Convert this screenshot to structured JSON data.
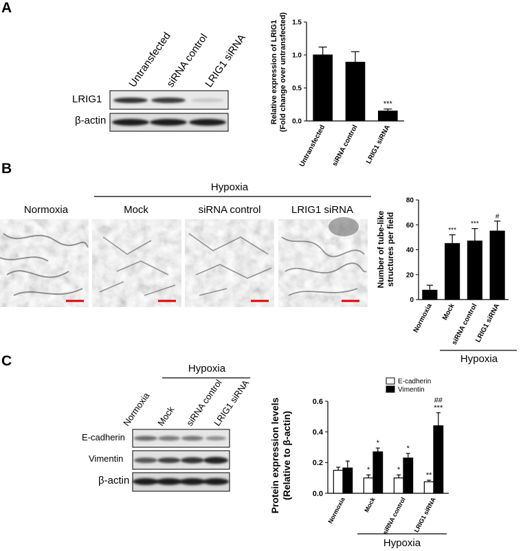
{
  "panel_a": {
    "letter": "A",
    "lane_labels": [
      "Untransfected",
      "siRNA control",
      "LRIG1 siRNA"
    ],
    "blot_rows": [
      "LRIG1",
      "β-actin"
    ],
    "chart_data": {
      "type": "bar",
      "categories": [
        "Untransfected",
        "siRNA control",
        "LRIG1 siRNA"
      ],
      "values": [
        1.0,
        0.89,
        0.15
      ],
      "errors": [
        0.12,
        0.16,
        0.03
      ],
      "annotations": [
        "",
        "",
        "***"
      ],
      "ylabel_line1": "Relative expression of LRIG1",
      "ylabel_line2": "(Fold change over untransfected)",
      "ylim": [
        0,
        1.5
      ],
      "yticks": [
        "0.0",
        "0.5",
        "1.0",
        "1.5"
      ],
      "ytick_values": [
        0,
        0.5,
        1.0,
        1.5
      ],
      "bar_color": "#000000"
    }
  },
  "panel_b": {
    "letter": "B",
    "group_label": "Hypoxia",
    "image_labels": [
      "Normoxia",
      "Mock",
      "siRNA control",
      "LRIG1 siRNA"
    ],
    "chart_data": {
      "type": "bar",
      "categories": [
        "Normoxia",
        "Mock",
        "siRNA control",
        "LRIG1 siRNA"
      ],
      "values": [
        7.5,
        45,
        47,
        55
      ],
      "errors": [
        4,
        7,
        10,
        8
      ],
      "annotations": [
        "",
        "***",
        "***",
        "#"
      ],
      "ylabel_line1": "Number of tube-like",
      "ylabel_line2": "structures per field",
      "ylim": [
        0,
        80
      ],
      "yticks": [
        "0",
        "20",
        "40",
        "60",
        "80"
      ],
      "ytick_values": [
        0,
        20,
        40,
        60,
        80
      ],
      "group_label": "Hypoxia",
      "bar_color": "#000000"
    }
  },
  "panel_c": {
    "letter": "C",
    "group_label": "Hypoxia",
    "lane_labels": [
      "Normoxia",
      "Mock",
      "siRNA control",
      "LRIG1 siRNA"
    ],
    "blot_rows": [
      "E-cadherin",
      "Vimentin",
      "β-actin"
    ],
    "chart_data": {
      "type": "bar",
      "categories": [
        "Normoxia",
        "Mock",
        "siRNA control",
        "LRIG1 siRNA"
      ],
      "series": [
        {
          "name": "E-cadherin",
          "values": [
            0.15,
            0.1,
            0.1,
            0.075
          ],
          "errors": [
            0.02,
            0.02,
            0.02,
            0.01
          ],
          "annotations": [
            "",
            "*",
            "*",
            "**"
          ],
          "color": "#ffffff"
        },
        {
          "name": "Vimentin",
          "values": [
            0.165,
            0.27,
            0.23,
            0.44
          ],
          "errors": [
            0.045,
            0.025,
            0.03,
            0.085
          ],
          "annotations": [
            "",
            "*",
            "*",
            "***"
          ],
          "color": "#000000"
        }
      ],
      "extra_annotations": [
        "",
        "",
        "",
        "##"
      ],
      "ylabel_line1": "Protein expression levels",
      "ylabel_line2": "(Relative to β-actin)",
      "ylim": [
        0,
        0.6
      ],
      "yticks": [
        "0.0",
        "0.2",
        "0.4",
        "0.6"
      ],
      "ytick_values": [
        0,
        0.2,
        0.4,
        0.6
      ],
      "legend_position": "top-right",
      "group_label": "Hypoxia"
    }
  }
}
